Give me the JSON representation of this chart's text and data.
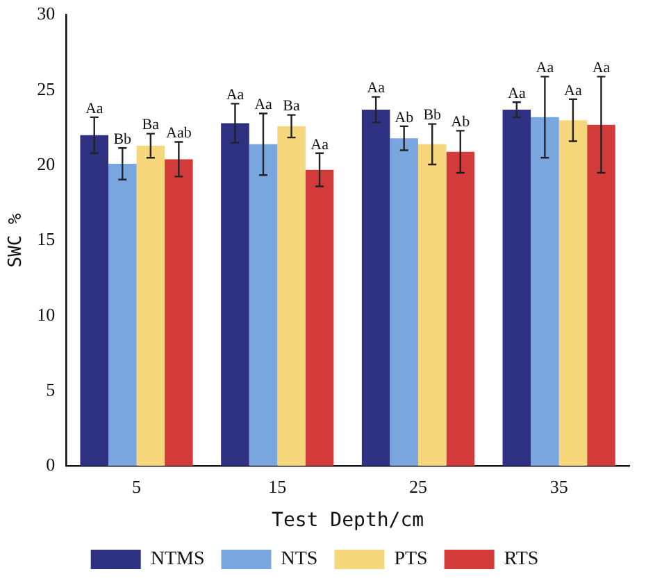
{
  "chart_data": {
    "type": "bar",
    "xlabel": "Test Depth/cm",
    "ylabel": "SWC %",
    "categories": [
      "5",
      "15",
      "25",
      "35"
    ],
    "ylim": [
      0,
      30
    ],
    "yticks": [
      0,
      5,
      10,
      15,
      20,
      25,
      30
    ],
    "grid": false,
    "legend": "bottom",
    "series": [
      {
        "name": "NTMS",
        "color": "#2e3182",
        "values": [
          22.0,
          22.8,
          23.7,
          23.7
        ],
        "errors": [
          1.2,
          1.3,
          0.85,
          0.5
        ],
        "value_labels": [
          "Aa",
          "Aa",
          "Aa",
          "Aa"
        ]
      },
      {
        "name": "NTS",
        "color": "#7aa6e0",
        "values": [
          20.1,
          21.4,
          21.8,
          23.2
        ],
        "errors": [
          1.05,
          2.05,
          0.8,
          2.7
        ],
        "value_labels": [
          "Bb",
          "Aa",
          "Ab",
          "Aa"
        ]
      },
      {
        "name": "PTS",
        "color": "#f6d77c",
        "values": [
          21.3,
          22.6,
          21.4,
          23.0
        ],
        "errors": [
          0.8,
          0.75,
          1.35,
          1.4
        ],
        "value_labels": [
          "Ba",
          "Ba",
          "Bb",
          "Aa"
        ]
      },
      {
        "name": "RTS",
        "color": "#d33b3b",
        "values": [
          20.4,
          19.7,
          20.9,
          22.7
        ],
        "errors": [
          1.15,
          1.1,
          1.4,
          3.2
        ],
        "value_labels": [
          "Aab",
          "Aa",
          "Ab",
          "Aa"
        ]
      }
    ]
  }
}
